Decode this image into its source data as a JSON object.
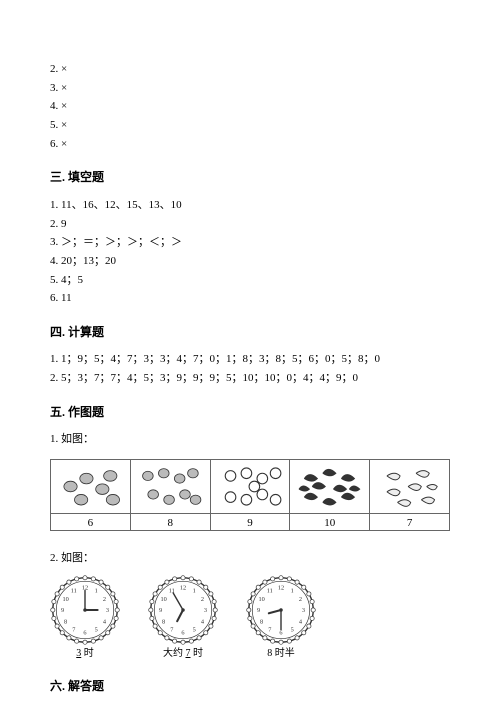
{
  "section2": {
    "items": [
      "2. ×",
      "3. ×",
      "4. ×",
      "5. ×",
      "6. ×"
    ]
  },
  "section3": {
    "title": "三. 填空题",
    "items": [
      "1. 11、16、12、15、13、10",
      "2. 9",
      "3. ＞；＝；＞；＞；＜；＞",
      "4. 20；13；20",
      "5. 4；5",
      "6. 11"
    ]
  },
  "section4": {
    "title": "四. 计算题",
    "items": [
      "1. 1；9；5；4；7；3；3；4；7；0；1；8；3；8；5；6；0；5；8；0",
      "2. 5；3；7；7；4；5；3；9；9；9；5；10；10；0；4；4；9；0"
    ]
  },
  "section5": {
    "title": "五. 作图题",
    "q1": {
      "label": "1. 如图：",
      "counts": [
        "6",
        "8",
        "9",
        "10",
        "7"
      ]
    },
    "q2": {
      "label": "2. 如图：",
      "clocks": [
        {
          "hour": 3,
          "minute": 0,
          "label_prefix": "",
          "label_value": "3",
          "label_suffix": " 时"
        },
        {
          "hour": 6,
          "minute": 55,
          "label_prefix": "大约 ",
          "label_value": "7",
          "label_suffix": " 时"
        },
        {
          "hour": 8,
          "minute": 30,
          "label_prefix": "",
          "label_value": "8 时半",
          "label_suffix": ""
        }
      ]
    }
  },
  "section6": {
    "title": "六. 解答题"
  },
  "style": {
    "clock_stroke": "#333",
    "clock_fill": "#fff",
    "doodle_stroke": "#333",
    "doodle_fill": "#888"
  }
}
